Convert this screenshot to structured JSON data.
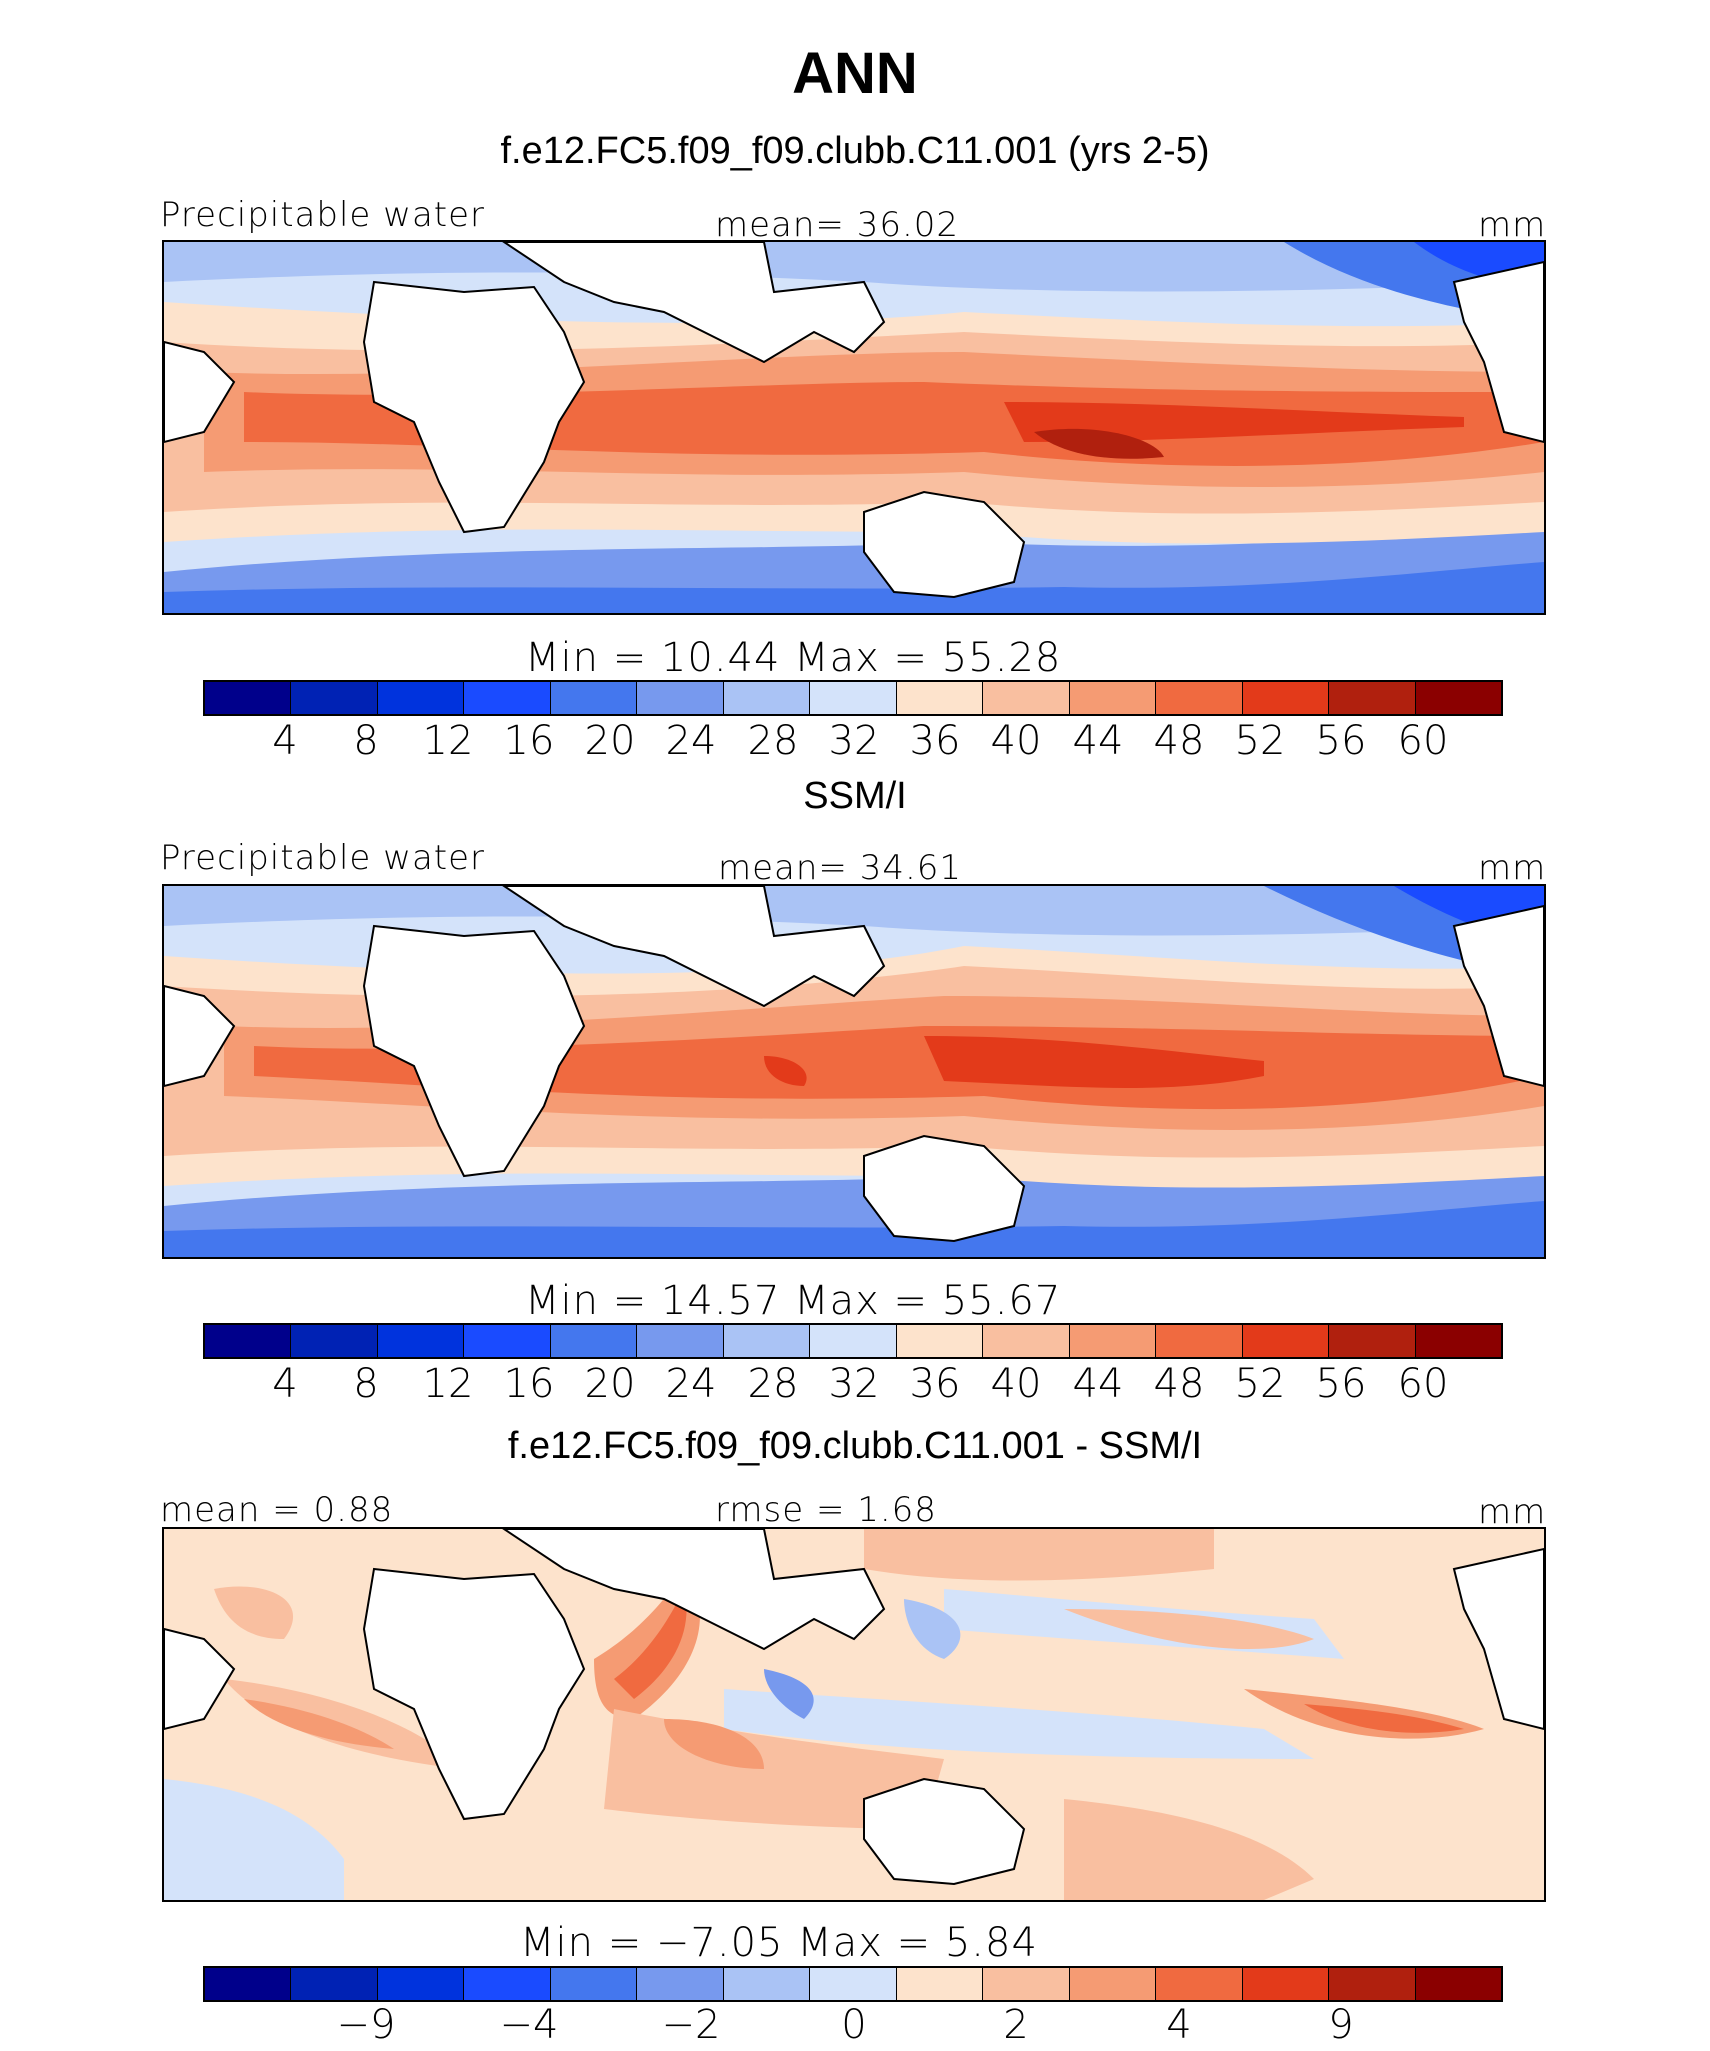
{
  "header": {
    "season": "ANN",
    "panel1_title": "f.e12.FC5.f09_f09.clubb.C11.001 (yrs 2-5)",
    "panel2_title": "SSM/I",
    "panel3_title": "f.e12.FC5.f09_f09.clubb.C11.001 - SSM/I"
  },
  "panels": [
    {
      "left_label": "Precipitable water",
      "center_label": "mean=   36.02",
      "right_label": "mm",
      "minmax": "Min  =   10.44  Max  =   55.28",
      "ticks": [
        "4",
        "8",
        "12",
        "16",
        "20",
        "24",
        "28",
        "32",
        "36",
        "40",
        "44",
        "48",
        "52",
        "56",
        "60"
      ]
    },
    {
      "left_label": "Precipitable water",
      "center_label": "mean=   34.61",
      "right_label": "mm",
      "minmax": "Min  =   14.57  Max  =   55.67",
      "ticks": [
        "4",
        "8",
        "12",
        "16",
        "20",
        "24",
        "28",
        "32",
        "36",
        "40",
        "44",
        "48",
        "52",
        "56",
        "60"
      ]
    },
    {
      "left_label": "mean =    0.88",
      "center_label": "rmse =    1.68",
      "right_label": "mm",
      "minmax": "Min  =   −7.05  Max  =    5.84",
      "ticks": [
        "−9",
        "−4",
        "−2",
        "0",
        "2",
        "4",
        "9"
      ]
    }
  ],
  "colors": {
    "scale": [
      "#00008b",
      "#0022b4",
      "#0033dd",
      "#1a4bff",
      "#4477ee",
      "#7799ee",
      "#aac3f5",
      "#d4e3fa",
      "#fde3cc",
      "#f9bfa0",
      "#f59b73",
      "#f06a40",
      "#e33a1a",
      "#b0200e",
      "#8b0000"
    ]
  }
}
